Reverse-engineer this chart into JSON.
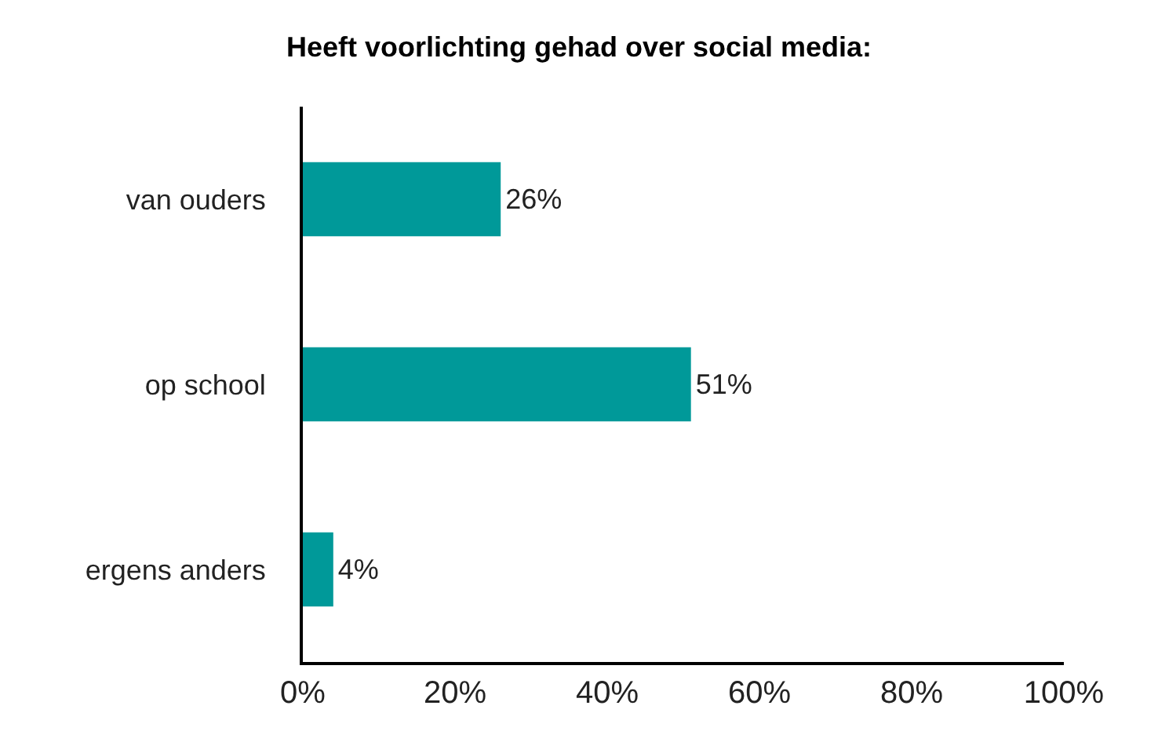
{
  "chart_data": {
    "type": "bar",
    "orientation": "horizontal",
    "title": "Heeft voorlichting gehad over social media:",
    "categories": [
      "van ouders",
      "op school",
      "ergens anders"
    ],
    "values": [
      26,
      51,
      4
    ],
    "value_labels": [
      "26%",
      "51%",
      "4%"
    ],
    "color": "#009999",
    "xlim": [
      0,
      100
    ],
    "xticks": [
      {
        "value": 0,
        "label": "0%"
      },
      {
        "value": 20,
        "label": "20%"
      },
      {
        "value": 40,
        "label": "40%"
      },
      {
        "value": 60,
        "label": "60%"
      },
      {
        "value": 80,
        "label": "80%"
      },
      {
        "value": 100,
        "label": "100%"
      }
    ],
    "grid": false
  }
}
